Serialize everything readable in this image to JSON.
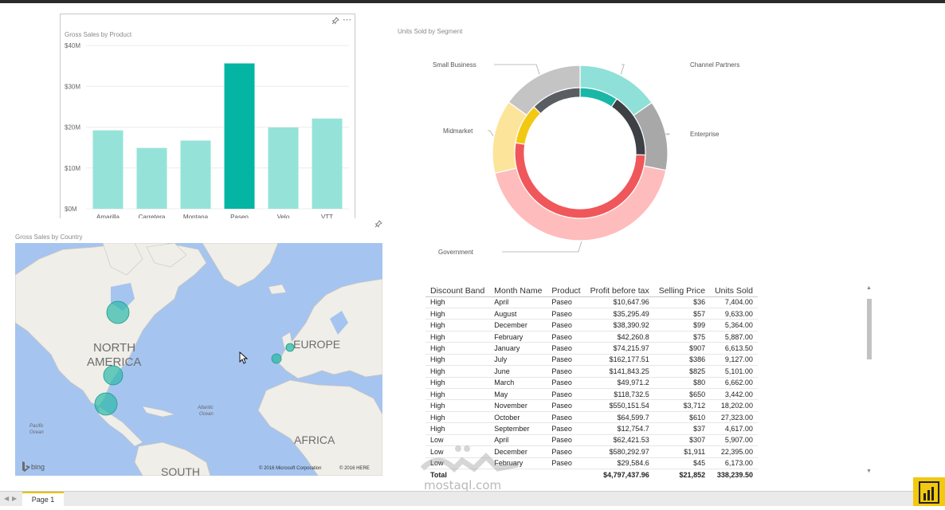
{
  "bar_chart": {
    "title": "Gross Sales by Product",
    "chart_data": {
      "type": "bar",
      "categories": [
        "Amarilla",
        "Carretera",
        "Montana",
        "Paseo",
        "Velo",
        "VTT"
      ],
      "values": [
        19.2,
        14.9,
        16.7,
        35.6,
        19.9,
        22.1
      ],
      "ylim": [
        0,
        40
      ],
      "yticks": [
        "$0M",
        "$10M",
        "$20M",
        "$30M",
        "$40M"
      ],
      "highlight_index": 3,
      "colors": {
        "normal": "#95e3d8",
        "highlight": "#05b5a3"
      }
    }
  },
  "map": {
    "title": "Gross Sales by Country",
    "labels": {
      "north": "NORTH",
      "america": "AMERICA",
      "europe": "EUROPE",
      "africa": "AFRICA",
      "south": "SOUTH",
      "atlantic1": "Atlantic",
      "atlantic2": "Ocean",
      "pacific1": "Pacific",
      "pacific2": "Ocean"
    },
    "bing": "bing",
    "copyright1": "© 2016 Microsoft Corporation",
    "copyright2": "© 2016 HERE"
  },
  "donut": {
    "title": "Units Sold by Segment",
    "chart_data": {
      "type": "pie",
      "segments": [
        "Channel Partners",
        "Enterprise",
        "Government",
        "Midmarket",
        "Small Business"
      ],
      "outer_values": [
        14.2,
        12.0,
        40.1,
        12.6,
        14.1
      ],
      "inner_values": [
        9.5,
        16.0,
        52.0,
        10.0,
        12.5
      ],
      "outer_colors": [
        "#8fe0d8",
        "#a8a8a8",
        "#ffbcbc",
        "#fce59b",
        "#c4c4c4"
      ],
      "inner_colors": [
        "#1ab7a6",
        "#3d4145",
        "#f0575b",
        "#f2c811",
        "#5a5e62"
      ]
    }
  },
  "table": {
    "columns": [
      "Discount Band",
      "Month Name",
      "Product",
      "Profit before tax",
      "Selling Price",
      "Units Sold"
    ],
    "rows": [
      [
        "High",
        "April",
        "Paseo",
        "$10,647.96",
        "$36",
        "7,404.00"
      ],
      [
        "High",
        "August",
        "Paseo",
        "$35,295.49",
        "$57",
        "9,633.00"
      ],
      [
        "High",
        "December",
        "Paseo",
        "$38,390.92",
        "$99",
        "5,364.00"
      ],
      [
        "High",
        "February",
        "Paseo",
        "$42,260.8",
        "$75",
        "5,887.00"
      ],
      [
        "High",
        "January",
        "Paseo",
        "$74,215.97",
        "$907",
        "6,613.50"
      ],
      [
        "High",
        "July",
        "Paseo",
        "$162,177.51",
        "$386",
        "9,127.00"
      ],
      [
        "High",
        "June",
        "Paseo",
        "$141,843.25",
        "$825",
        "5,101.00"
      ],
      [
        "High",
        "March",
        "Paseo",
        "$49,971.2",
        "$80",
        "6,662.00"
      ],
      [
        "High",
        "May",
        "Paseo",
        "$118,732.5",
        "$650",
        "3,442.00"
      ],
      [
        "High",
        "November",
        "Paseo",
        "$550,151.54",
        "$3,712",
        "18,202.00"
      ],
      [
        "High",
        "October",
        "Paseo",
        "$64,599.7",
        "$610",
        "27,323.00"
      ],
      [
        "High",
        "September",
        "Paseo",
        "$12,754.7",
        "$37",
        "4,617.00"
      ],
      [
        "Low",
        "April",
        "Paseo",
        "$62,421.53",
        "$307",
        "5,907.00"
      ],
      [
        "Low",
        "December",
        "Paseo",
        "$580,292.97",
        "$1,911",
        "22,395.00"
      ],
      [
        "Low",
        "February",
        "Paseo",
        "$29,584.6",
        "$45",
        "6,173.00"
      ]
    ],
    "total": [
      "Total",
      "",
      "",
      "$4,797,437.96",
      "$21,852",
      "338,239.50"
    ]
  },
  "pagebar": {
    "page_tab": "Page 1"
  },
  "watermark": "mostaql.com"
}
